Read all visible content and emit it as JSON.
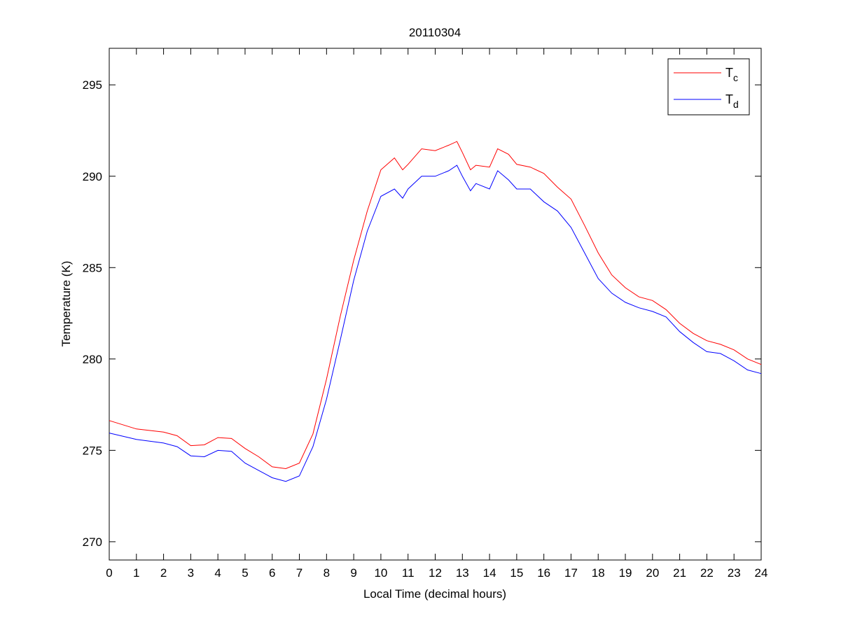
{
  "chart_data": {
    "type": "line",
    "title": "20110304",
    "xlabel": "Local Time (decimal hours)",
    "ylabel": "Temperature (K)",
    "xlim": [
      0,
      24
    ],
    "ylim": [
      269,
      297
    ],
    "xticks": [
      0,
      1,
      2,
      3,
      4,
      5,
      6,
      7,
      8,
      9,
      10,
      11,
      12,
      13,
      14,
      15,
      16,
      17,
      18,
      19,
      20,
      21,
      22,
      23,
      24
    ],
    "yticks": [
      270,
      275,
      280,
      285,
      290,
      295
    ],
    "grid": false,
    "legend_placement": "top-right",
    "x": [
      0,
      1,
      2,
      2.5,
      3,
      3.5,
      4,
      4.5,
      5,
      5.5,
      6,
      6.5,
      7,
      7.5,
      8,
      8.5,
      9,
      9.5,
      10,
      10.5,
      10.8,
      11,
      11.5,
      12,
      12.5,
      12.8,
      13,
      13.3,
      13.5,
      14,
      14.3,
      14.7,
      15,
      15.5,
      16,
      16.5,
      17,
      17.5,
      18,
      18.5,
      19,
      19.5,
      20,
      20.5,
      21,
      21.5,
      22,
      22.5,
      23,
      23.5,
      24
    ],
    "series": [
      {
        "name": "T",
        "subscript": "c",
        "color": "#ff0000",
        "values": [
          276.63,
          276.17,
          276.0,
          275.8,
          275.26,
          275.3,
          275.7,
          275.65,
          275.1,
          274.65,
          274.1,
          274.0,
          274.3,
          275.9,
          278.9,
          282.3,
          285.4,
          288.1,
          290.35,
          291.0,
          290.35,
          290.65,
          291.5,
          291.4,
          291.7,
          291.9,
          291.3,
          290.35,
          290.6,
          290.5,
          291.5,
          291.2,
          290.65,
          290.5,
          290.15,
          289.4,
          288.75,
          287.3,
          285.8,
          284.6,
          283.9,
          283.4,
          283.2,
          282.7,
          281.95,
          281.4,
          281.0,
          280.8,
          280.5,
          280.0,
          279.7
        ]
      },
      {
        "name": "T",
        "subscript": "d",
        "color": "#0000ff",
        "values": [
          275.95,
          275.6,
          275.4,
          275.2,
          274.7,
          274.65,
          275.0,
          274.95,
          274.3,
          273.9,
          273.5,
          273.3,
          273.6,
          275.2,
          277.8,
          281.0,
          284.3,
          287.0,
          288.9,
          289.3,
          288.8,
          289.3,
          290.0,
          290.0,
          290.3,
          290.6,
          290.0,
          289.2,
          289.6,
          289.3,
          290.3,
          289.8,
          289.3,
          289.3,
          288.6,
          288.1,
          287.2,
          285.8,
          284.4,
          283.6,
          283.1,
          282.8,
          282.6,
          282.3,
          281.5,
          280.9,
          280.4,
          280.3,
          279.9,
          279.4,
          279.2
        ]
      }
    ]
  }
}
